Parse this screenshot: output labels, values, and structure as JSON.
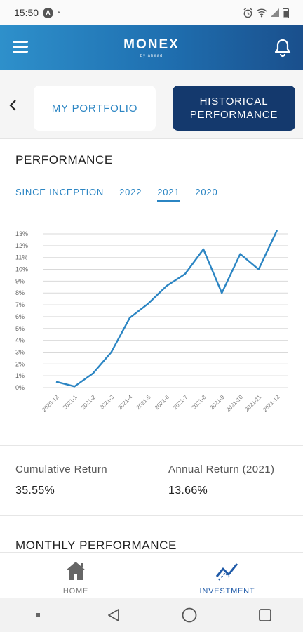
{
  "status_bar": {
    "time": "15:50"
  },
  "header": {
    "brand": "MONEX",
    "tagline": "by ahead"
  },
  "tabs": {
    "portfolio": "MY PORTFOLIO",
    "historical_line1": "HISTORICAL",
    "historical_line2": "PERFORMANCE"
  },
  "performance": {
    "title": "PERFORMANCE",
    "periods": [
      "SINCE INCEPTION",
      "2022",
      "2021",
      "2020"
    ],
    "active_period": "2021"
  },
  "chart_data": {
    "type": "line",
    "title": "",
    "xlabel": "",
    "ylabel": "",
    "x": [
      "2020-12",
      "2021-1",
      "2021-2",
      "2021-3",
      "2021-4",
      "2021-5",
      "2021-6",
      "2021-7",
      "2021-8",
      "2021-9",
      "2021-10",
      "2021-11",
      "2021-12"
    ],
    "y_ticks": [
      "0%",
      "1%",
      "2%",
      "3%",
      "4%",
      "5%",
      "6%",
      "7%",
      "8%",
      "9%",
      "10%",
      "11%",
      "12%",
      "13%"
    ],
    "ylim": [
      0,
      13
    ],
    "series": [
      {
        "values": [
          0.5,
          0.1,
          1.2,
          3.0,
          5.9,
          7.1,
          8.6,
          9.6,
          11.7,
          8.0,
          11.3,
          10.0,
          13.3
        ]
      }
    ],
    "color": "#2b85c3",
    "grid": true
  },
  "stats": {
    "cumulative_label": "Cumulative Return",
    "cumulative_value": "35.55%",
    "annual_label": "Annual Return (2021)",
    "annual_value": "13.66%"
  },
  "monthly": {
    "title": "MONTHLY PERFORMANCE"
  },
  "bottom_nav": {
    "home": "HOME",
    "investment": "INVESTMENT"
  }
}
